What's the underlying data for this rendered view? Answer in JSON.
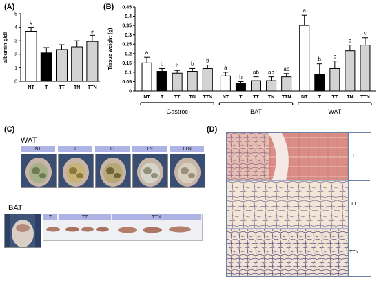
{
  "panels": {
    "a": "(A)",
    "b": "(B)",
    "c": "(C)",
    "d": "(D)"
  },
  "chart_data": [
    {
      "type": "bar",
      "ylabel": "albumin g/dl",
      "ylim": [
        0,
        5
      ],
      "yticks": [
        "0",
        "1",
        "2",
        "3",
        "4",
        "5"
      ],
      "categories": [
        "NT",
        "T",
        "TT",
        "TN",
        "TTN"
      ],
      "values": [
        3.7,
        2.1,
        2.35,
        2.55,
        2.95
      ],
      "errors": [
        0.3,
        0.4,
        0.35,
        0.45,
        0.45
      ],
      "fills": [
        "#ffffff",
        "#000000",
        "#d3d3d3",
        "#d3d3d3",
        "#d3d3d3"
      ],
      "annotations": [
        "#",
        "",
        "",
        "",
        "#"
      ]
    },
    {
      "type": "bar",
      "ylabel": "Tissue weight (g)",
      "ylim": [
        0,
        0.45
      ],
      "yticks": [
        "0",
        "0.05",
        "0.1",
        "0.15",
        "0.2",
        "0.25",
        "0.3",
        "0.35",
        "0.4",
        "0.45"
      ],
      "groups": [
        {
          "name": "Gastroc",
          "categories": [
            "NT",
            "T",
            "TT",
            "TN",
            "TTN"
          ],
          "values": [
            0.15,
            0.105,
            0.095,
            0.105,
            0.12
          ],
          "errors": [
            0.03,
            0.015,
            0.015,
            0.015,
            0.018
          ],
          "letters": [
            "a",
            "b",
            "b",
            "b",
            "b"
          ]
        },
        {
          "name": "BAT",
          "categories": [
            "NT",
            "T",
            "TT",
            "TN",
            "TTN"
          ],
          "values": [
            0.08,
            0.04,
            0.055,
            0.055,
            0.075
          ],
          "errors": [
            0.02,
            0.01,
            0.02,
            0.02,
            0.018
          ],
          "letters": [
            "a",
            "b",
            "ab",
            "ab",
            "ac"
          ]
        },
        {
          "name": "WAT",
          "categories": [
            "NT",
            "T",
            "TT",
            "TN",
            "TTN"
          ],
          "values": [
            0.35,
            0.09,
            0.12,
            0.215,
            0.245
          ],
          "errors": [
            0.055,
            0.055,
            0.04,
            0.03,
            0.04
          ],
          "letters": [
            "a",
            "b",
            "b",
            "c",
            "c"
          ]
        }
      ],
      "fills": [
        "#ffffff",
        "#000000",
        "#d3d3d3",
        "#d3d3d3",
        "#d3d3d3"
      ]
    }
  ],
  "panel_c": {
    "wat_title": "WAT",
    "wat_labels": [
      "NT",
      "T",
      "TT",
      "TN",
      "TTN"
    ],
    "bat_title": "BAT",
    "bat_labels": [
      "T",
      "TT",
      "TTN"
    ]
  },
  "panel_d": {
    "tags": [
      "T",
      "TT",
      "TTN"
    ]
  }
}
